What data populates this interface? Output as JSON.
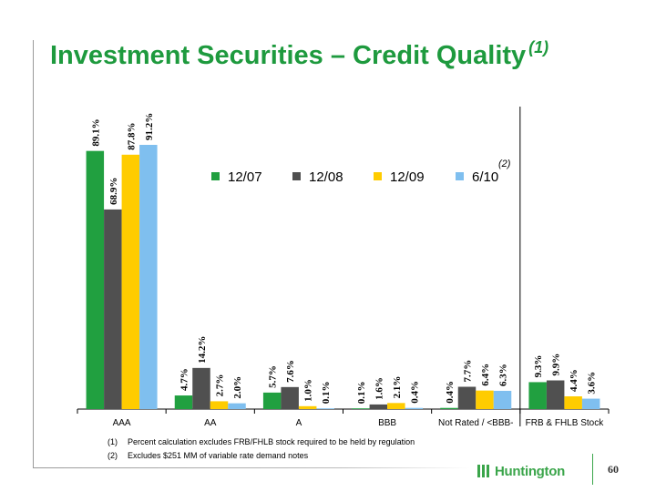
{
  "title": {
    "text": "Investment Securities – Credit Quality",
    "footnote_ref": "(1)"
  },
  "chart_data": {
    "type": "bar",
    "categories": [
      "AAA",
      "AA",
      "A",
      "BBB",
      "Not Rated / <BBB-",
      "FRB & FHLB Stock"
    ],
    "series": [
      {
        "name": "12/07",
        "color": "#21a040",
        "values": [
          89.1,
          4.7,
          5.7,
          0.1,
          0.4,
          9.3
        ]
      },
      {
        "name": "12/08",
        "color": "#505050",
        "values": [
          68.9,
          14.2,
          7.6,
          1.6,
          7.7,
          9.9
        ]
      },
      {
        "name": "12/09",
        "color": "#ffcc00",
        "values": [
          87.8,
          2.7,
          1.0,
          2.1,
          6.4,
          4.4
        ]
      },
      {
        "name": "6/10",
        "color": "#7fbfef",
        "values": [
          91.2,
          2.0,
          0.1,
          0.4,
          6.3,
          3.6
        ]
      }
    ],
    "data_labels": [
      [
        "89.1%",
        "68.9%",
        "87.8%",
        "91.2%"
      ],
      [
        "4.7%",
        "14.2%",
        "2.7%",
        "2.0%"
      ],
      [
        "5.7%",
        "7.6%",
        "1.0%",
        "0.1%"
      ],
      [
        "0.1%",
        "1.6%",
        "2.1%",
        "0.4%"
      ],
      [
        "0.4%",
        "7.7%",
        "6.4%",
        "6.3%"
      ],
      [
        "9.3%",
        "9.9%",
        "4.4%",
        "3.6%"
      ]
    ],
    "legend_note": "(2)",
    "legend_position": "top-right",
    "ylim": [
      0,
      100
    ],
    "grid": false,
    "separator_before_last_category": true
  },
  "footnotes": [
    {
      "num": "(1)",
      "text": "Percent calculation excludes FRB/FHLB stock required to be held by regulation"
    },
    {
      "num": "(2)",
      "text": "Excludes $251 MM of variable rate demand notes"
    }
  ],
  "logo": {
    "text": "Huntington"
  },
  "page_number": "60"
}
